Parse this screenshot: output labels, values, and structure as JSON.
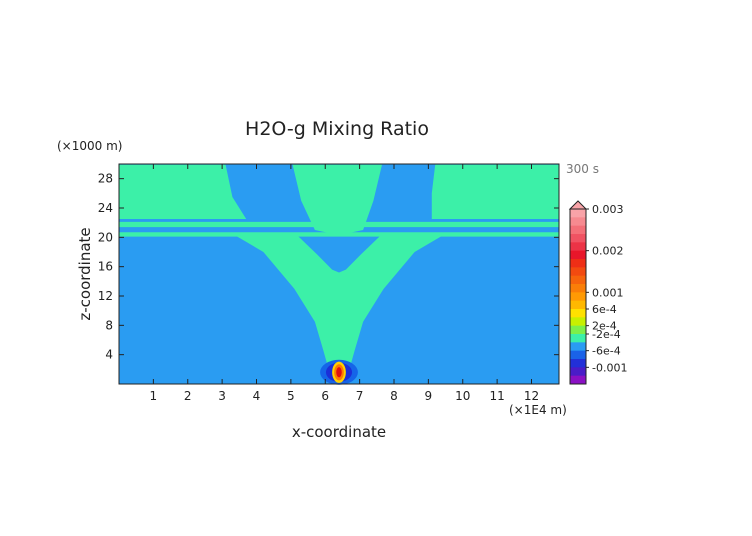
{
  "chart_data": {
    "type": "heatmap",
    "title": "H2O-g Mixing Ratio",
    "xlabel": "x-coordinate",
    "ylabel": "z-coordinate",
    "x_unit": "(×1E4 m)",
    "y_unit": "(×1000 m)",
    "time_label": "300 s",
    "xlim": [
      0,
      12.8
    ],
    "ylim": [
      0,
      30
    ],
    "x_ticks": [
      1,
      2,
      3,
      4,
      5,
      6,
      7,
      8,
      9,
      10,
      11,
      12
    ],
    "y_ticks": [
      4,
      8,
      12,
      16,
      20,
      24,
      28
    ],
    "background_color": "#2a9cf2",
    "regions": [
      {
        "name": "upper-left-layer",
        "color": "#3cf0a8",
        "polygon": [
          [
            0,
            22.5
          ],
          [
            3.7,
            22.5
          ],
          [
            3.3,
            25.5
          ],
          [
            3.1,
            29.9
          ],
          [
            0,
            29.9
          ]
        ]
      },
      {
        "name": "upper-right-layer",
        "color": "#3cf0a8",
        "polygon": [
          [
            9.1,
            22.5
          ],
          [
            12.8,
            22.5
          ],
          [
            12.8,
            29.9
          ],
          [
            9.2,
            29.9
          ],
          [
            9.1,
            26
          ]
        ]
      },
      {
        "name": "upper-center-layer",
        "color": "#3cf0a8",
        "polygon": [
          [
            5.05,
            29.9
          ],
          [
            7.65,
            29.9
          ],
          [
            7.4,
            25
          ],
          [
            7.1,
            21
          ],
          [
            6.4,
            20.3
          ],
          [
            5.7,
            21
          ],
          [
            5.3,
            25
          ]
        ]
      },
      {
        "name": "band-21-5",
        "color": "#3cf0a8",
        "polygon": [
          [
            0,
            21.4
          ],
          [
            12.8,
            21.4
          ],
          [
            12.8,
            22.1
          ],
          [
            0,
            22.1
          ]
        ]
      },
      {
        "name": "band-20-2",
        "color": "#3cf0a8",
        "polygon": [
          [
            0,
            20.1
          ],
          [
            12.8,
            20.1
          ],
          [
            12.8,
            20.7
          ],
          [
            0,
            20.7
          ]
        ]
      },
      {
        "name": "plume",
        "color": "#3cf0a8",
        "polygon": [
          [
            3.3,
            20.5
          ],
          [
            4.5,
            20.5
          ],
          [
            5.2,
            20.2
          ],
          [
            5.8,
            17.5
          ],
          [
            6.2,
            15.6
          ],
          [
            6.4,
            15.2
          ],
          [
            6.6,
            15.6
          ],
          [
            7.0,
            17.5
          ],
          [
            7.6,
            20.2
          ],
          [
            8.3,
            20.5
          ],
          [
            9.5,
            20.5
          ],
          [
            8.6,
            18
          ],
          [
            7.7,
            13
          ],
          [
            7.1,
            8.5
          ],
          [
            6.85,
            4.5
          ],
          [
            6.75,
            2.8
          ],
          [
            6.05,
            2.8
          ],
          [
            5.95,
            4.5
          ],
          [
            5.7,
            8.5
          ],
          [
            5.1,
            13
          ],
          [
            4.2,
            18
          ]
        ]
      }
    ],
    "source_anomaly": {
      "center": [
        6.4,
        1.6
      ],
      "levels": [
        {
          "color": "#1565e8",
          "rx": 0.55,
          "ry": 1.7
        },
        {
          "color": "#1b2fd8",
          "rx": 0.38,
          "ry": 1.3
        },
        {
          "color": "#ffd000",
          "rx": 0.2,
          "ry": 1.45
        },
        {
          "color": "#ff7a00",
          "rx": 0.14,
          "ry": 1.1
        },
        {
          "color": "#e01010",
          "rx": 0.08,
          "ry": 0.7
        }
      ]
    },
    "colorbar": {
      "labels": [
        "0.003",
        "0.002",
        "0.001",
        "6e-4",
        "2e-4",
        "-2e-4",
        "-6e-4",
        "-0.001"
      ],
      "label_levels": [
        0,
        5,
        10,
        12,
        14,
        15,
        17,
        19
      ],
      "colors": [
        "#f9a3a8",
        "#f78a90",
        "#f46f78",
        "#f05262",
        "#ec3346",
        "#e8162a",
        "#ee2e16",
        "#f24a10",
        "#f6640c",
        "#fa7e08",
        "#ff9a04",
        "#ffb800",
        "#ffe100",
        "#c8f000",
        "#7cf04a",
        "#3cf0a8",
        "#2a9cf2",
        "#1a62e8",
        "#2230d8",
        "#4a1cc8",
        "#8a10c4"
      ]
    }
  }
}
